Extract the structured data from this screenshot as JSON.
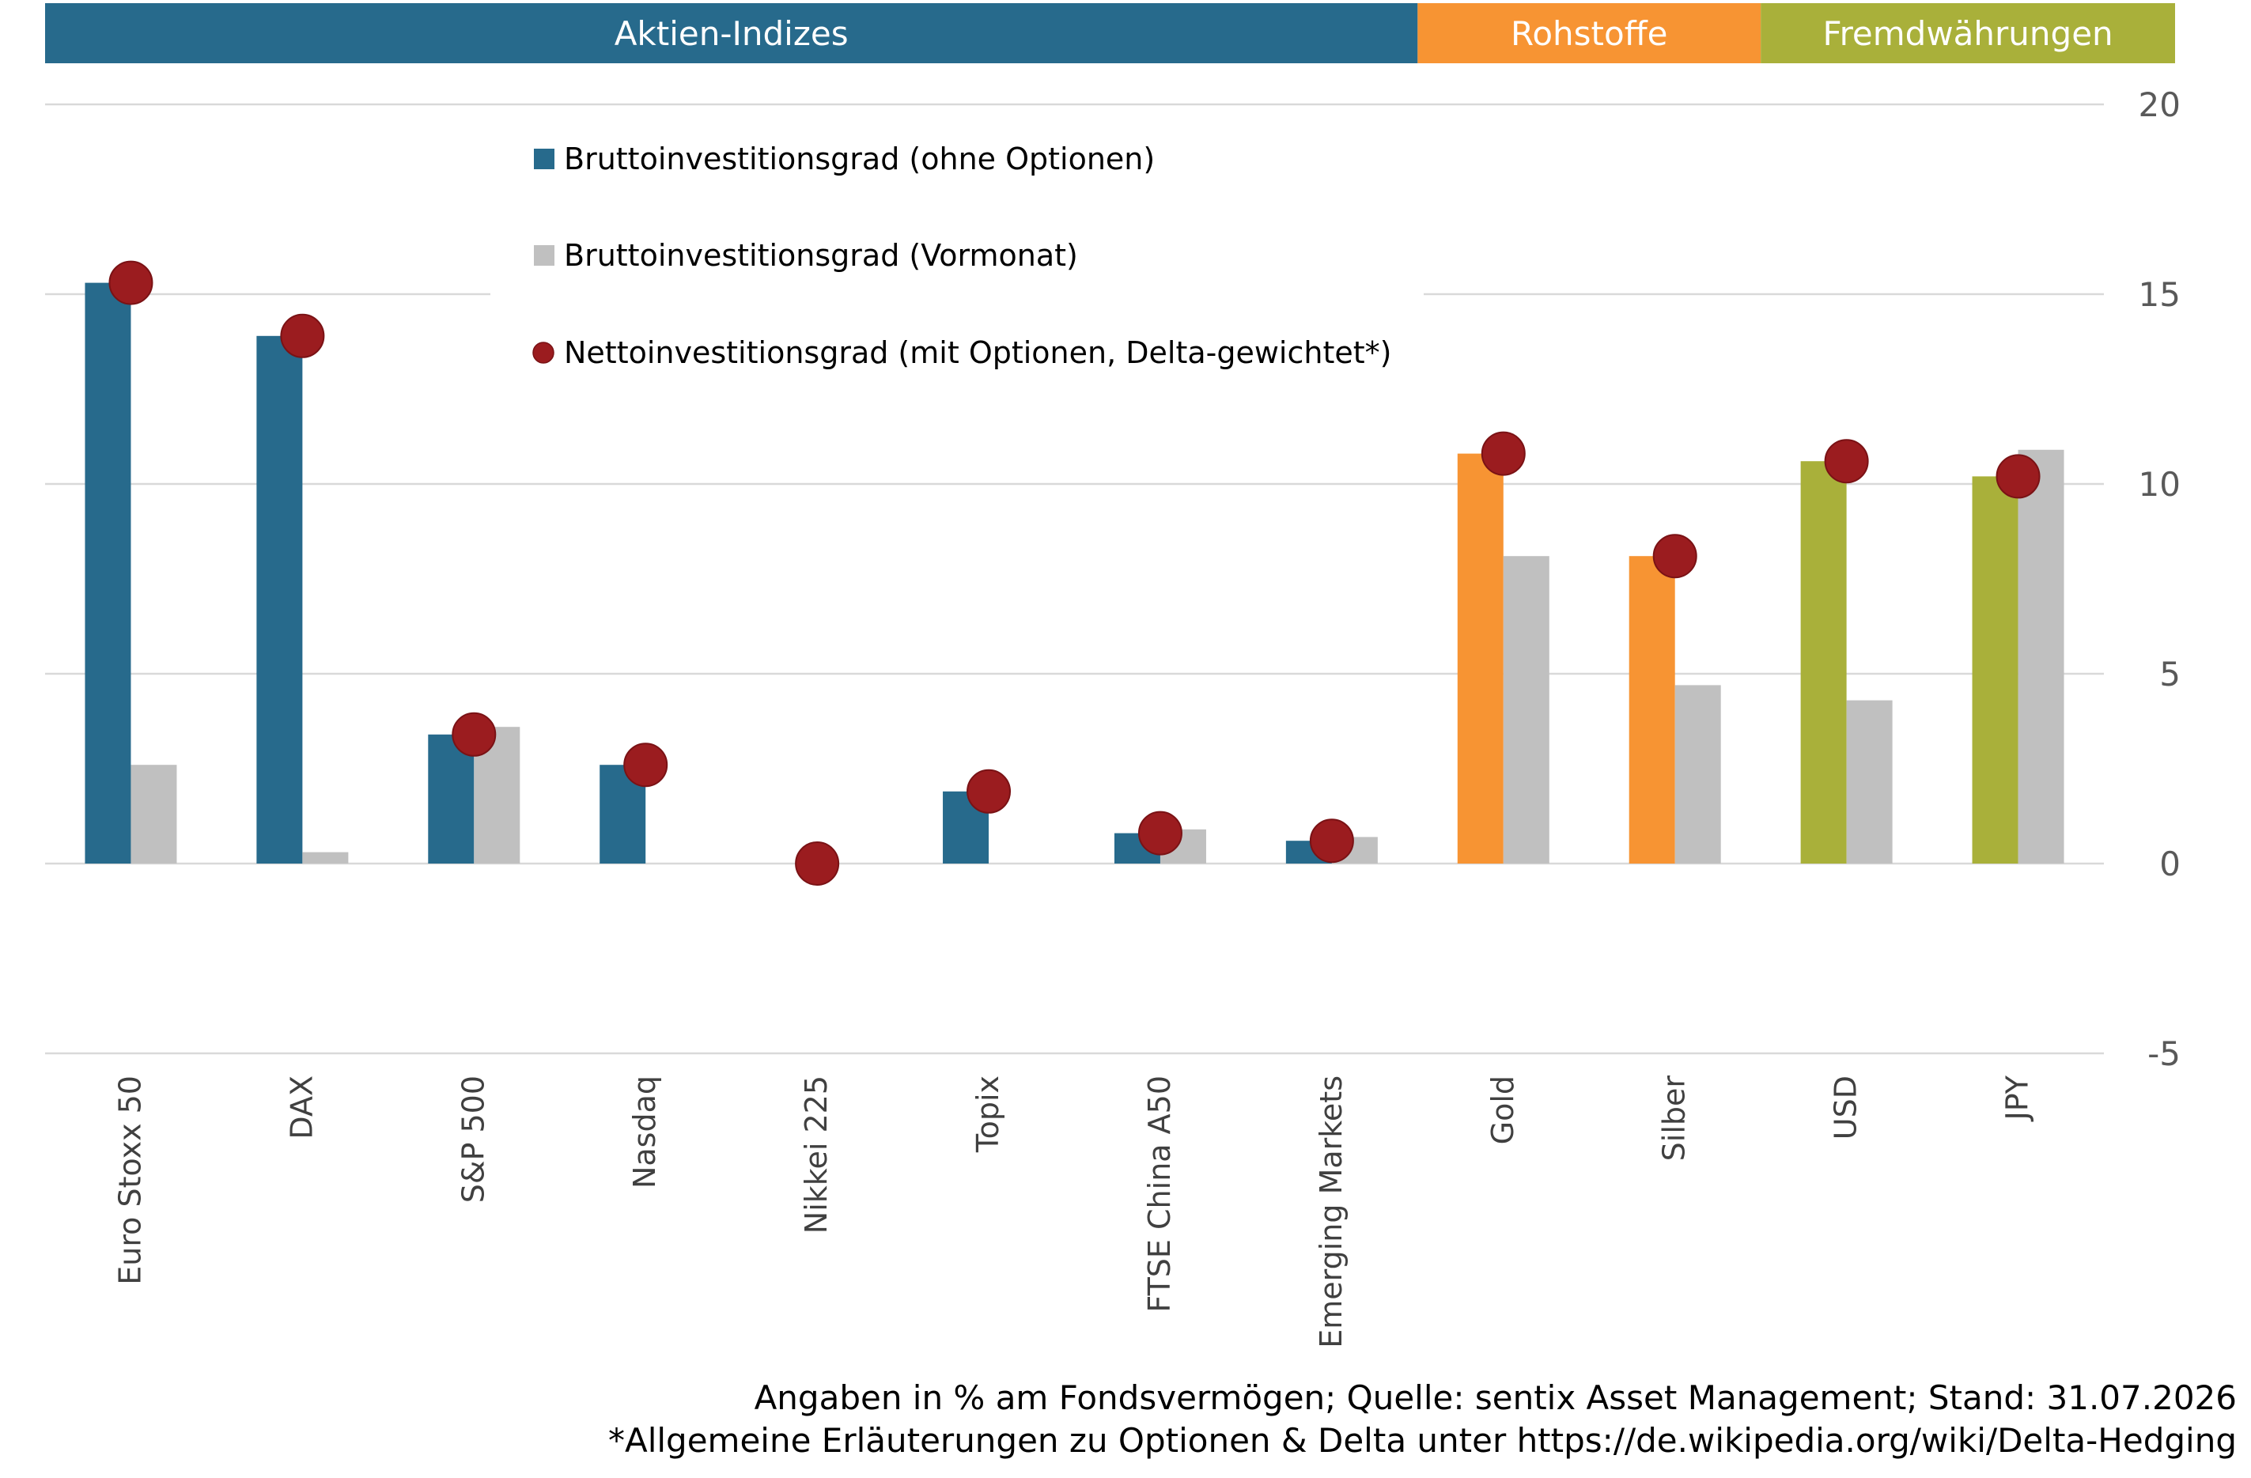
{
  "bands": [
    {
      "label": "Aktien-Indizes",
      "color": "#276a8c",
      "start": 0,
      "end": 7
    },
    {
      "label": "Rohstoffe",
      "color": "#f79433",
      "start": 8,
      "end": 9
    },
    {
      "label": "Fremdwährungen",
      "color": "#a9b03a",
      "start": 10,
      "end": 11
    }
  ],
  "chart_data": {
    "type": "bar",
    "categories": [
      "Euro Stoxx 50",
      "DAX",
      "S&P 500",
      "Nasdaq",
      "Nikkei 225",
      "Topix",
      "FTSE China A50",
      "Emerging Markets",
      "Gold",
      "Silber",
      "USD",
      "JPY"
    ],
    "category_colors": [
      "#276a8c",
      "#276a8c",
      "#276a8c",
      "#276a8c",
      "#276a8c",
      "#276a8c",
      "#276a8c",
      "#276a8c",
      "#f79433",
      "#f79433",
      "#a9b03a",
      "#a9b03a"
    ],
    "series": [
      {
        "name": "Bruttoinvestitionsgrad (ohne Optionen)",
        "kind": "bar",
        "color": "#276a8c",
        "values": [
          15.3,
          13.9,
          3.4,
          2.6,
          0,
          1.9,
          0.8,
          0.6,
          10.8,
          8.1,
          10.6,
          10.2
        ]
      },
      {
        "name": "Bruttoinvestitionsgrad (Vormonat)",
        "kind": "bar",
        "color": "#c0c0c0",
        "values": [
          2.6,
          0.3,
          3.6,
          0,
          0,
          0,
          0.9,
          0.7,
          8.1,
          4.7,
          4.3,
          10.9
        ]
      },
      {
        "name": "Nettoinvestitionsgrad (mit Optionen, Delta-gewichtet*)",
        "kind": "marker",
        "color": "#9b1c1f",
        "values": [
          15.3,
          13.9,
          3.4,
          2.6,
          0,
          1.9,
          0.8,
          0.6,
          10.8,
          8.1,
          10.6,
          10.2
        ]
      }
    ],
    "ylim": [
      -5,
      20
    ],
    "yticks": [
      -5,
      0,
      5,
      10,
      15,
      20
    ],
    "y_axis_side": "right",
    "grid": true,
    "legend_position": "top-left"
  },
  "footnotes": [
    "Angaben in % am Fondsvermögen; Quelle: sentix Asset Management; Stand: 31.07.2026",
    "*Allgemeine Erläuterungen zu Optionen & Delta unter https://de.wikipedia.org/wiki/Delta-Hedging"
  ]
}
